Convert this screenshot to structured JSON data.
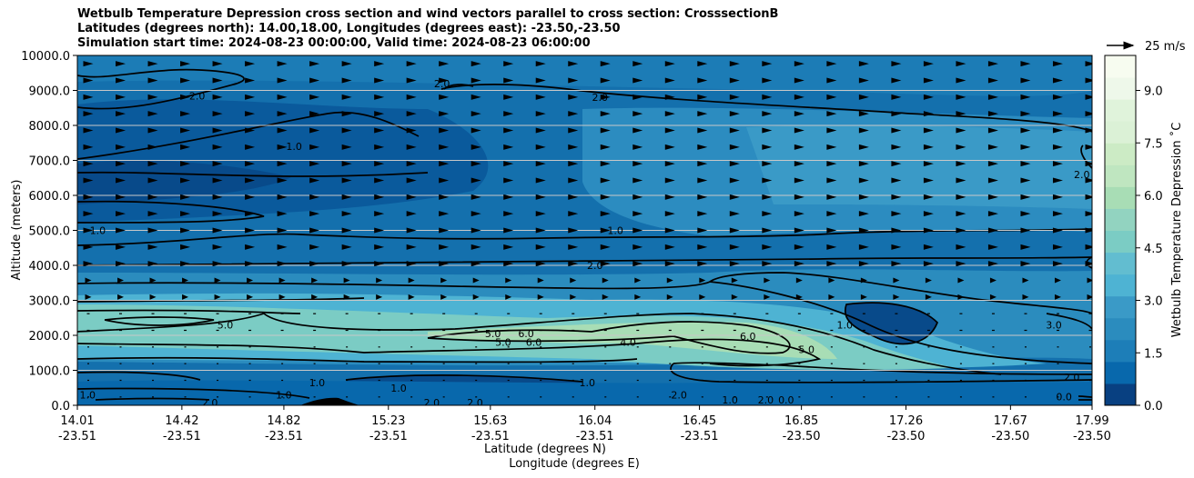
{
  "chart_data": {
    "type": "heatmap",
    "title_lines": [
      "Wetbulb Temperature Depression cross section and wind vectors parallel to cross section: CrosssectionB",
      "Latitudes (degrees north): 14.00,18.00, Longitudes (degrees east): -23.50,-23.50",
      "Simulation start time: 2024-08-23 00:00:00, Valid time: 2024-08-23 06:00:00"
    ],
    "ylabel": "Altitude (meters)",
    "xlabel_line1": "Latitude (degrees N)",
    "xlabel_line2": "Longitude (degrees E)",
    "ylim": [
      0,
      10000
    ],
    "yticks": [
      "0.0",
      "1000.0",
      "2000.0",
      "3000.0",
      "4000.0",
      "5000.0",
      "6000.0",
      "7000.0",
      "8000.0",
      "9000.0",
      "10000.0"
    ],
    "xlim": [
      14.01,
      17.99
    ],
    "xticks_lat": [
      "14.01",
      "14.42",
      "14.82",
      "15.23",
      "15.63",
      "16.04",
      "16.45",
      "16.85",
      "17.26",
      "17.67",
      "17.99"
    ],
    "xticks_lon": [
      "-23.51",
      "-23.51",
      "-23.51",
      "-23.51",
      "-23.51",
      "-23.51",
      "-23.51",
      "-23.50",
      "-23.50",
      "-23.50",
      "-23.50"
    ],
    "colorbar": {
      "label": "Wetbulb Temperature Depression ˚C",
      "range": [
        0,
        10
      ],
      "ticks": [
        "0.0",
        "1.5",
        "3.0",
        "4.5",
        "6.0",
        "7.5",
        "9.0"
      ],
      "colors": [
        "#084081",
        "#0868ac",
        "#1d7eb8",
        "#2b8cbe",
        "#3a9ac7",
        "#4eb3d3",
        "#62bdd0",
        "#7bccc4",
        "#92d3c0",
        "#a8ddb5",
        "#bfe6c0",
        "#ccebc5",
        "#dbf1d6",
        "#e0f3db",
        "#eef8ea",
        "#f7fcf0"
      ]
    },
    "quiver_key": "25 m/s",
    "wind_vectors": "westerly (pointing east), strong aloft (above ~3500 m), weak near surface",
    "contour_labels": [
      {
        "text": "2.0",
        "x": 14.48,
        "y": 8850
      },
      {
        "text": "2.0",
        "x": 15.44,
        "y": 9200
      },
      {
        "text": "2.0",
        "x": 16.06,
        "y": 8800
      },
      {
        "text": "1.0",
        "x": 14.86,
        "y": 7400
      },
      {
        "text": "1.0",
        "x": 14.09,
        "y": 5000
      },
      {
        "text": "1.0",
        "x": 16.12,
        "y": 5000
      },
      {
        "text": "2.0",
        "x": 16.04,
        "y": 4000
      },
      {
        "text": "2.0",
        "x": 17.95,
        "y": 6600
      },
      {
        "text": "5.0",
        "x": 14.59,
        "y": 2300
      },
      {
        "text": "5.0",
        "x": 15.64,
        "y": 2050
      },
      {
        "text": "6.0",
        "x": 15.77,
        "y": 2050
      },
      {
        "text": "5.0",
        "x": 15.68,
        "y": 1800
      },
      {
        "text": "6.0",
        "x": 15.8,
        "y": 1800
      },
      {
        "text": "4.0",
        "x": 16.17,
        "y": 1800
      },
      {
        "text": "6.0",
        "x": 16.64,
        "y": 1980
      },
      {
        "text": "5.0",
        "x": 16.87,
        "y": 1600
      },
      {
        "text": "1.0",
        "x": 17.02,
        "y": 2300
      },
      {
        "text": "3.0",
        "x": 17.84,
        "y": 2300
      },
      {
        "text": "1.0",
        "x": 14.82,
        "y": 300
      },
      {
        "text": "1.0",
        "x": 14.95,
        "y": 650
      },
      {
        "text": "1.0",
        "x": 15.27,
        "y": 500
      },
      {
        "text": "2.0",
        "x": 15.4,
        "y": 80
      },
      {
        "text": "2.0",
        "x": 15.57,
        "y": 80
      },
      {
        "text": "1.0",
        "x": 16.01,
        "y": 650
      },
      {
        "text": "2.0",
        "x": 16.37,
        "y": 300
      },
      {
        "text": "1.0",
        "x": 16.57,
        "y": 150
      },
      {
        "text": "2.0",
        "x": 16.71,
        "y": 150
      },
      {
        "text": "0.0",
        "x": 16.79,
        "y": 150
      },
      {
        "text": "2.0",
        "x": 17.91,
        "y": 800
      },
      {
        "text": "0.0",
        "x": 17.88,
        "y": 250
      },
      {
        "text": "2.0",
        "x": 14.53,
        "y": 80
      },
      {
        "text": "1.0",
        "x": 14.05,
        "y": 300
      }
    ]
  }
}
